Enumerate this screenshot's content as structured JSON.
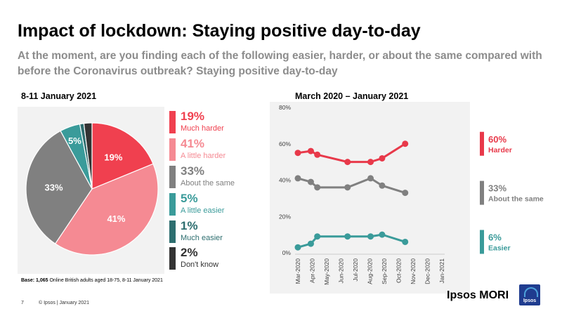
{
  "title": "Impact of lockdown: Staying positive day-to-day",
  "subtitle": "At the moment, are you finding each of the following easier, harder, or about the same compared with before the Coronavirus outbreak? Staying positive day-to-day",
  "left_label": "8-11 January 2021",
  "right_label": "March 2020 – January 2021",
  "colors": {
    "much_harder": "#f0404f",
    "little_harder": "#f58a93",
    "same": "#808080",
    "little_easier": "#3a9b9a",
    "much_easier": "#2d6e6f",
    "dont_know": "#333333",
    "harder_line": "#e8394a",
    "easier_line": "#3a9b9a",
    "same_line": "#808080"
  },
  "legend": [
    {
      "pct": "19%",
      "label": "Much harder",
      "color": "#f0404f"
    },
    {
      "pct": "41%",
      "label": "A  little harder",
      "color": "#f58a93"
    },
    {
      "pct": "33%",
      "label": "About the same",
      "color": "#808080"
    },
    {
      "pct": "5%",
      "label": "A little easier",
      "color": "#3a9b9a"
    },
    {
      "pct": "1%",
      "label": "Much easier",
      "color": "#2d6e6f"
    },
    {
      "pct": "2%",
      "label": "Don't know",
      "color": "#333333"
    }
  ],
  "base": {
    "bold": "Base: 1,065",
    "text": " Online British adults aged 18-75,  8-11 January 2021"
  },
  "footer": {
    "page": "7",
    "copyright": "© Ipsos | January  2021",
    "brand": "Ipsos MORI",
    "logo": "Ipsos"
  },
  "chart_data": [
    {
      "type": "pie",
      "title": "8-11 January 2021",
      "slices": [
        {
          "name": "Much harder",
          "value": 19,
          "label": "19%",
          "color": "#f0404f"
        },
        {
          "name": "A little harder",
          "value": 41,
          "label": "41%",
          "color": "#f58a93"
        },
        {
          "name": "About the same",
          "value": 33,
          "label": "33%",
          "color": "#808080"
        },
        {
          "name": "A little easier",
          "value": 5,
          "label": "5%",
          "color": "#3a9b9a"
        },
        {
          "name": "Much easier",
          "value": 1,
          "label": "",
          "color": "#2d6e6f"
        },
        {
          "name": "Don't know",
          "value": 2,
          "label": "",
          "color": "#333333"
        }
      ]
    },
    {
      "type": "line",
      "title": "March 2020 – January 2021",
      "categories": [
        "Mar-2020",
        "Apr-2020",
        "May-2020",
        "Jun-2020",
        "Jul-2020",
        "Aug-2020",
        "Sep-2020",
        "Oct-2020",
        "Nov-2020",
        "Dec-2020",
        "Jan-2021"
      ],
      "ylim": [
        0,
        80
      ],
      "yticks": [
        "0%",
        "20%",
        "40%",
        "60%",
        "80%"
      ],
      "series": [
        {
          "name": "Harder",
          "color": "#e8394a",
          "end_label": "60%",
          "points": [
            [
              0,
              55
            ],
            [
              0.9,
              56
            ],
            [
              1.35,
              54
            ],
            [
              3.45,
              50
            ],
            [
              5.05,
              50
            ],
            [
              5.85,
              52
            ],
            [
              7.45,
              60
            ]
          ]
        },
        {
          "name": "About the same",
          "color": "#808080",
          "end_label": "33%",
          "points": [
            [
              0,
              41
            ],
            [
              0.9,
              39
            ],
            [
              1.35,
              36
            ],
            [
              3.45,
              36
            ],
            [
              5.05,
              41
            ],
            [
              5.85,
              37
            ],
            [
              7.45,
              33
            ]
          ]
        },
        {
          "name": "Easier",
          "color": "#3a9b9a",
          "end_label": "6%",
          "points": [
            [
              0,
              3
            ],
            [
              0.9,
              5
            ],
            [
              1.35,
              9
            ],
            [
              3.45,
              9
            ],
            [
              5.05,
              9
            ],
            [
              5.85,
              10
            ],
            [
              7.45,
              6
            ]
          ]
        }
      ]
    }
  ]
}
